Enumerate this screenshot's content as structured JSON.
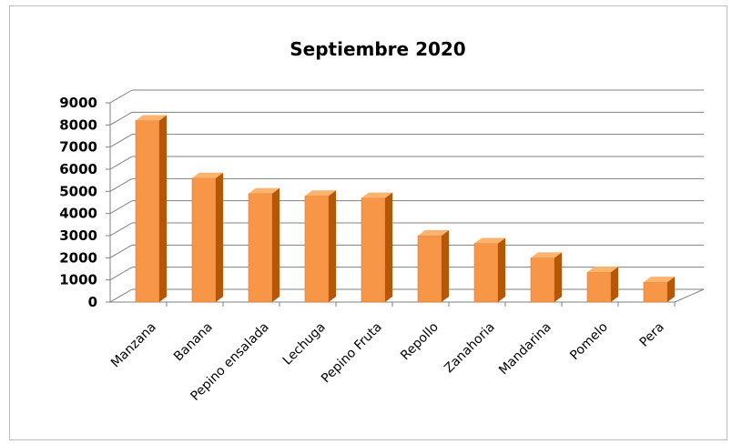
{
  "chart_data": {
    "type": "bar",
    "title": "Septiembre 2020",
    "categories": [
      "Manzana",
      "Banana",
      "Pepino ensalada",
      "Lechuga",
      "Pepino Fruta",
      "Repollo",
      "Zanahoria",
      "Mandarina",
      "Pomelo",
      "Pera"
    ],
    "values": [
      8200,
      5600,
      4900,
      4800,
      4700,
      3000,
      2650,
      2000,
      1350,
      900
    ],
    "ylim": [
      0,
      9000
    ],
    "yticks": [
      0,
      1000,
      2000,
      3000,
      4000,
      5000,
      6000,
      7000,
      8000,
      9000
    ],
    "grid": true,
    "legend": "none",
    "colors": {
      "bar_front": "#f79646",
      "bar_side": "#b65708",
      "bar_top": "#fbb36e",
      "grid": "#808080",
      "axis": "#808080"
    }
  }
}
